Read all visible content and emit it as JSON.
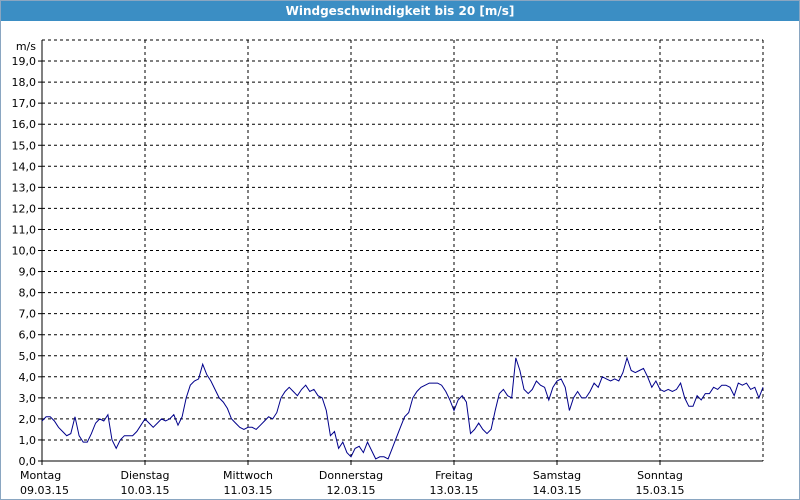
{
  "window": {
    "title": "Windgeschwindigkeit bis 20 [m/s]"
  },
  "chart_data": {
    "type": "line",
    "title": "Windgeschwindigkeit bis 20 [m/s]",
    "ylabel": "m/s",
    "ylim": [
      0,
      20
    ],
    "grid": true,
    "y_ticks": [
      "0,0",
      "1,0",
      "2,0",
      "3,0",
      "4,0",
      "5,0",
      "6,0",
      "7,0",
      "8,0",
      "9,0",
      "10,0",
      "11,0",
      "12,0",
      "13,0",
      "14,0",
      "15,0",
      "16,0",
      "17,0",
      "18,0",
      "19,0"
    ],
    "x_ticks": [
      {
        "day": "Montag",
        "date": "09.03.15"
      },
      {
        "day": "Dienstag",
        "date": "10.03.15"
      },
      {
        "day": "Mittwoch",
        "date": "11.03.15"
      },
      {
        "day": "Donnerstag",
        "date": "12.03.15"
      },
      {
        "day": "Freitag",
        "date": "13.03.15"
      },
      {
        "day": "Samstag",
        "date": "14.03.15"
      },
      {
        "day": "Sonntag",
        "date": "15.03.15"
      }
    ],
    "series": [
      {
        "color": "#00008b",
        "x": [
          0,
          0.04,
          0.08,
          0.12,
          0.16,
          0.2,
          0.24,
          0.28,
          0.32,
          0.36,
          0.4,
          0.44,
          0.48,
          0.52,
          0.56,
          0.6,
          0.64,
          0.68,
          0.72,
          0.76,
          0.8,
          0.84,
          0.88,
          0.92,
          0.96,
          1,
          1.04,
          1.08,
          1.12,
          1.16,
          1.2,
          1.24,
          1.28,
          1.32,
          1.36,
          1.4,
          1.44,
          1.48,
          1.52,
          1.56,
          1.6,
          1.64,
          1.68,
          1.72,
          1.76,
          1.8,
          1.84,
          1.88,
          1.92,
          1.96,
          2,
          2.04,
          2.08,
          2.12,
          2.16,
          2.2,
          2.24,
          2.28,
          2.32,
          2.36,
          2.4,
          2.44,
          2.48,
          2.52,
          2.56,
          2.6,
          2.64,
          2.68,
          2.72,
          2.76,
          2.8,
          2.84,
          2.88,
          2.92,
          2.96,
          3,
          3.04,
          3.08,
          3.12,
          3.16,
          3.2,
          3.24,
          3.28,
          3.32,
          3.36,
          3.4,
          3.44,
          3.48,
          3.52,
          3.56,
          3.6,
          3.64,
          3.68,
          3.72,
          3.76,
          3.8,
          3.84,
          3.88,
          3.92,
          3.96,
          4,
          4.04,
          4.08,
          4.12,
          4.16,
          4.2,
          4.24,
          4.28,
          4.32,
          4.36,
          4.4,
          4.44,
          4.48,
          4.52,
          4.56,
          4.6,
          4.64,
          4.68,
          4.72,
          4.76,
          4.8,
          4.84,
          4.88,
          4.92,
          4.96,
          5,
          5.04,
          5.08,
          5.12,
          5.16,
          5.2,
          5.24,
          5.28,
          5.32,
          5.36,
          5.4,
          5.44,
          5.48,
          5.52,
          5.56,
          5.6,
          5.64,
          5.68,
          5.72,
          5.76,
          5.8,
          5.84,
          5.88,
          5.92,
          5.96,
          6,
          6.04,
          6.08,
          6.12,
          6.16,
          6.2,
          6.24,
          6.28,
          6.32,
          6.36,
          6.4,
          6.44,
          6.48,
          6.52,
          6.56,
          6.6,
          6.64,
          6.68,
          6.72,
          6.76,
          6.8,
          6.84,
          6.88,
          6.92,
          6.96,
          7.0
        ],
        "y": [
          1.9,
          2.1,
          2.1,
          1.9,
          1.6,
          1.4,
          1.2,
          1.3,
          2.1,
          1.2,
          0.9,
          0.9,
          1.3,
          1.8,
          2.0,
          1.9,
          2.2,
          1.0,
          0.6,
          1.0,
          1.2,
          1.2,
          1.2,
          1.4,
          1.7,
          2.0,
          1.8,
          1.6,
          1.8,
          2.0,
          1.9,
          2.0,
          2.2,
          1.7,
          2.1,
          3.0,
          3.6,
          3.8,
          3.9,
          4.6,
          4.1,
          3.8,
          3.4,
          3.0,
          2.8,
          2.5,
          2.0,
          1.8,
          1.6,
          1.5,
          1.6,
          1.6,
          1.5,
          1.7,
          1.9,
          2.1,
          2.0,
          2.3,
          3.0,
          3.3,
          3.5,
          3.3,
          3.1,
          3.4,
          3.6,
          3.3,
          3.4,
          3.1,
          3.0,
          2.4,
          1.2,
          1.4,
          0.6,
          0.9,
          0.4,
          0.2,
          0.6,
          0.7,
          0.4,
          0.9,
          0.5,
          0.1,
          0.2,
          0.2,
          0.1,
          0.6,
          1.1,
          1.6,
          2.1,
          2.3,
          3.0,
          3.3,
          3.5,
          3.6,
          3.7,
          3.7,
          3.7,
          3.6,
          3.3,
          2.9,
          2.4,
          2.9,
          3.1,
          2.8,
          1.3,
          1.5,
          1.8,
          1.5,
          1.3,
          1.5,
          2.4,
          3.2,
          3.4,
          3.1,
          3.0,
          4.9,
          4.3,
          3.4,
          3.2,
          3.4,
          3.8,
          3.6,
          3.5,
          2.9,
          3.5,
          3.8,
          3.9,
          3.5,
          2.4,
          3.0,
          3.3,
          3.0,
          3.0,
          3.3,
          3.7,
          3.5,
          4.0,
          3.9,
          3.8,
          3.9,
          3.8,
          4.2,
          4.9,
          4.3,
          4.2,
          4.3,
          4.4,
          4.0,
          3.5,
          3.8,
          3.4,
          3.3,
          3.4,
          3.3,
          3.4,
          3.7,
          3.0,
          2.6,
          2.6,
          3.1,
          2.9,
          3.2,
          3.2,
          3.5,
          3.4,
          3.6,
          3.6,
          3.5,
          3.1,
          3.7,
          3.6,
          3.7,
          3.4,
          3.5,
          3.0,
          3.5
        ]
      }
    ]
  }
}
